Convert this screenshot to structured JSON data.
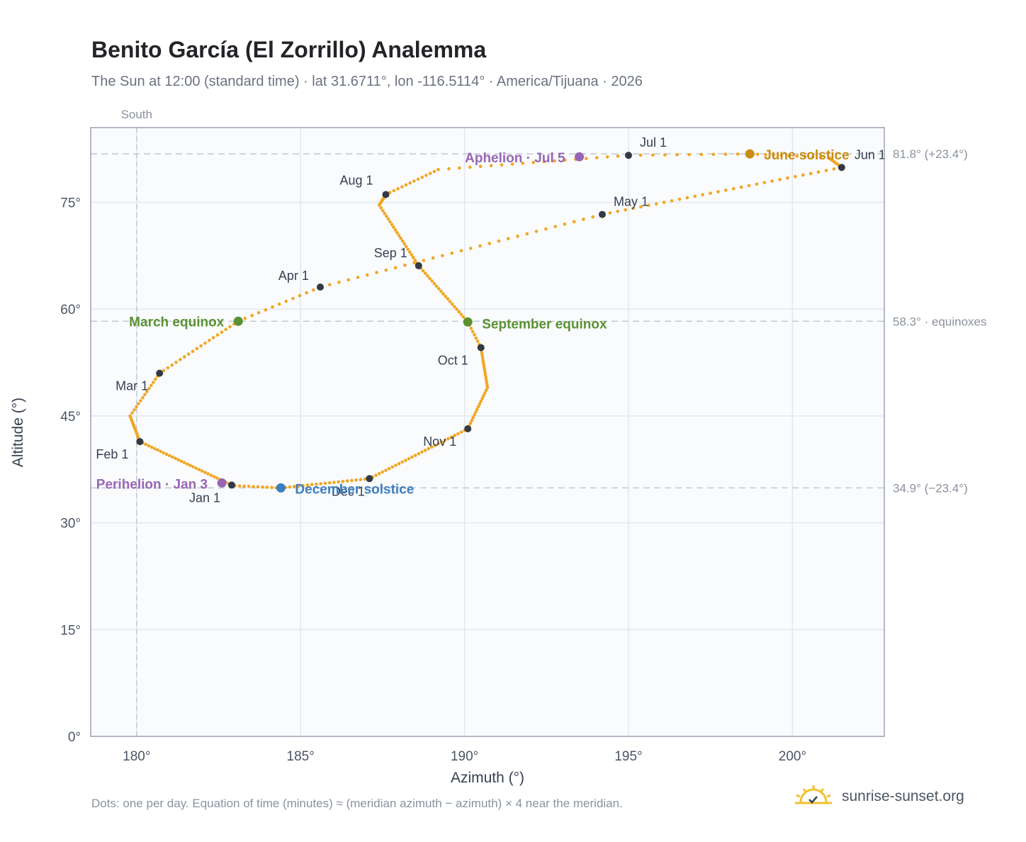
{
  "header": {
    "title": "Benito García (El Zorrillo) Analemma",
    "subtitle": "The Sun at 12:00 (standard time) · lat 31.6711°, lon -116.5114° · America/Tijuana · 2026"
  },
  "footer": {
    "note": "Dots: one per day. Equation of time (minutes) ≈ (meridian azimuth − azimuth) × 4 near the meridian.",
    "brand": "sunrise-sunset.org"
  },
  "colors": {
    "path": "#f2a623",
    "month_dot": "#333a44",
    "equinox": "#5a9232",
    "june_solstice": "#c98d12",
    "december_solstice": "#3d7fbe",
    "apsis": "#9866b4",
    "plot_bg": "#f9fbfd",
    "grid": "#e3e8ee",
    "frame": "#9aa3af",
    "reference_line": "#c2c8d0"
  },
  "chart_data": {
    "type": "scatter",
    "title": "Benito García (El Zorrillo) Analemma",
    "xlabel": "Azimuth (°)",
    "ylabel": "Altitude (°)",
    "xlim": [
      178.6,
      202.8
    ],
    "ylim": [
      0,
      85.5
    ],
    "x_ticks": [
      180,
      185,
      190,
      195,
      200
    ],
    "y_ticks": [
      0,
      15,
      30,
      45,
      60,
      75
    ],
    "x_tick_labels": [
      "180°",
      "185°",
      "190°",
      "195°",
      "200°"
    ],
    "y_tick_labels": [
      "0°",
      "15°",
      "30°",
      "45°",
      "60°",
      "75°"
    ],
    "grid": true,
    "meridian": {
      "azimuth": 180,
      "label": "South"
    },
    "reference_lines": [
      {
        "altitude": 81.8,
        "label": "81.8° (+23.4°)"
      },
      {
        "altitude": 58.3,
        "label": "58.3° · equinoxes"
      },
      {
        "altitude": 34.9,
        "label": "34.9° (−23.4°)"
      }
    ],
    "month_markers": [
      {
        "label": "Jan 1",
        "azimuth": 182.9,
        "altitude": 35.3
      },
      {
        "label": "Feb 1",
        "azimuth": 180.1,
        "altitude": 41.4
      },
      {
        "label": "Mar 1",
        "azimuth": 180.7,
        "altitude": 51.0
      },
      {
        "label": "Apr 1",
        "azimuth": 185.6,
        "altitude": 63.1
      },
      {
        "label": "May 1",
        "azimuth": 194.2,
        "altitude": 73.3
      },
      {
        "label": "Jun 1",
        "azimuth": 201.5,
        "altitude": 79.9
      },
      {
        "label": "Jul 1",
        "azimuth": 195.0,
        "altitude": 81.6
      },
      {
        "label": "Aug 1",
        "azimuth": 187.6,
        "altitude": 76.1
      },
      {
        "label": "Sep 1",
        "azimuth": 188.6,
        "altitude": 66.1
      },
      {
        "label": "Oct 1",
        "azimuth": 190.5,
        "altitude": 54.6
      },
      {
        "label": "Nov 1",
        "azimuth": 190.1,
        "altitude": 43.2
      },
      {
        "label": "Dec 1",
        "azimuth": 187.1,
        "altitude": 36.2
      }
    ],
    "events": [
      {
        "label": "March equinox",
        "azimuth": 183.1,
        "altitude": 58.3,
        "kind": "equinox"
      },
      {
        "label": "September equinox",
        "azimuth": 190.1,
        "altitude": 58.2,
        "kind": "equinox"
      },
      {
        "label": "June solstice",
        "azimuth": 198.7,
        "altitude": 81.8,
        "kind": "june_solstice"
      },
      {
        "label": "December solstice",
        "azimuth": 184.4,
        "altitude": 34.9,
        "kind": "december_solstice"
      },
      {
        "label": "Perihelion · Jan 3",
        "azimuth": 182.6,
        "altitude": 35.6,
        "kind": "apsis"
      },
      {
        "label": "Aphelion · Jul 5",
        "azimuth": 193.5,
        "altitude": 81.4,
        "kind": "apsis"
      }
    ],
    "path_key_points": [
      {
        "day": 1,
        "azimuth": 182.9,
        "altitude": 35.3
      },
      {
        "day": 32,
        "azimuth": 180.1,
        "altitude": 41.4
      },
      {
        "day": 46,
        "azimuth": 179.8,
        "altitude": 45.0
      },
      {
        "day": 60,
        "azimuth": 180.7,
        "altitude": 51.0
      },
      {
        "day": 79,
        "azimuth": 183.1,
        "altitude": 58.3
      },
      {
        "day": 91,
        "azimuth": 185.6,
        "altitude": 63.1
      },
      {
        "day": 121,
        "azimuth": 194.2,
        "altitude": 73.3
      },
      {
        "day": 152,
        "azimuth": 201.5,
        "altitude": 79.9
      },
      {
        "day": 162,
        "azimuth": 201.1,
        "altitude": 81.3
      },
      {
        "day": 172,
        "azimuth": 198.7,
        "altitude": 81.8
      },
      {
        "day": 182,
        "azimuth": 195.0,
        "altitude": 81.6
      },
      {
        "day": 200,
        "azimuth": 189.2,
        "altitude": 79.6
      },
      {
        "day": 213,
        "azimuth": 187.6,
        "altitude": 76.1
      },
      {
        "day": 222,
        "azimuth": 187.4,
        "altitude": 74.6
      },
      {
        "day": 244,
        "azimuth": 188.6,
        "altitude": 66.1
      },
      {
        "day": 266,
        "azimuth": 190.1,
        "altitude": 58.2
      },
      {
        "day": 274,
        "azimuth": 190.5,
        "altitude": 54.6
      },
      {
        "day": 290,
        "azimuth": 190.7,
        "altitude": 49.0
      },
      {
        "day": 305,
        "azimuth": 190.1,
        "altitude": 43.2
      },
      {
        "day": 335,
        "azimuth": 187.1,
        "altitude": 36.2
      },
      {
        "day": 355,
        "azimuth": 184.4,
        "altitude": 34.9
      },
      {
        "day": 365,
        "azimuth": 183.0,
        "altitude": 35.2
      }
    ]
  }
}
